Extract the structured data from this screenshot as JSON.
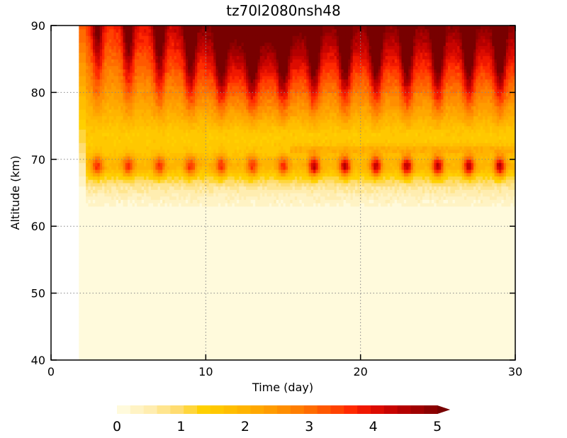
{
  "chart_data": {
    "type": "heatmap",
    "title": "tz70l2080nsh48",
    "xlabel": "Time (day)",
    "ylabel": "Altitude (km)",
    "xlim": [
      0,
      30
    ],
    "ylim": [
      40,
      90
    ],
    "x_ticks": [
      0,
      10,
      20,
      30
    ],
    "y_ticks": [
      40,
      50,
      60,
      70,
      80,
      90
    ],
    "grid": true,
    "data_start_day": 1.8,
    "colorbar": {
      "placement": "bottom",
      "min": 0,
      "max": 5,
      "step": 0.2,
      "ticks": [
        0,
        1,
        2,
        3,
        4,
        5
      ],
      "extend": "max",
      "colors": [
        "#fffadc",
        "#fff3c4",
        "#ffedb0",
        "#ffe58e",
        "#ffdc70",
        "#ffd63c",
        "#ffd000",
        "#ffc800",
        "#ffbe00",
        "#ffb400",
        "#ffa800",
        "#ff9c00",
        "#ff8e00",
        "#ff7e00",
        "#ff6c00",
        "#ff5800",
        "#ff4200",
        "#ff2a00",
        "#f01800",
        "#dc0c00",
        "#c80400",
        "#b40000",
        "#a00000",
        "#8c0000",
        "#780000"
      ]
    }
  }
}
